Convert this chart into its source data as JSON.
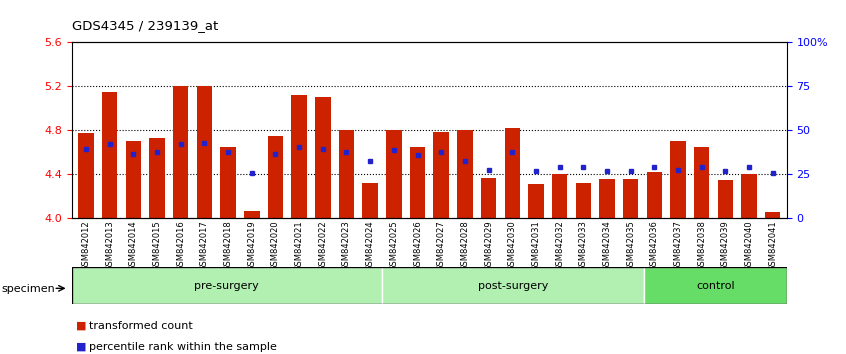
{
  "title": "GDS4345 / 239139_at",
  "samples": [
    "GSM842012",
    "GSM842013",
    "GSM842014",
    "GSM842015",
    "GSM842016",
    "GSM842017",
    "GSM842018",
    "GSM842019",
    "GSM842020",
    "GSM842021",
    "GSM842022",
    "GSM842023",
    "GSM842024",
    "GSM842025",
    "GSM842026",
    "GSM842027",
    "GSM842028",
    "GSM842029",
    "GSM842030",
    "GSM842031",
    "GSM842032",
    "GSM842033",
    "GSM842034",
    "GSM842035",
    "GSM842036",
    "GSM842037",
    "GSM842038",
    "GSM842039",
    "GSM842040",
    "GSM842041"
  ],
  "red_values": [
    4.77,
    5.15,
    4.7,
    4.73,
    5.2,
    5.2,
    4.65,
    4.06,
    4.75,
    5.12,
    5.1,
    4.8,
    4.32,
    4.8,
    4.65,
    4.78,
    4.8,
    4.36,
    4.82,
    4.31,
    4.4,
    4.32,
    4.35,
    4.35,
    4.42,
    4.7,
    4.65,
    4.34,
    4.4,
    4.05
  ],
  "blue_values": [
    4.63,
    4.67,
    4.58,
    4.6,
    4.67,
    4.68,
    4.6,
    4.41,
    4.58,
    4.65,
    4.63,
    4.6,
    4.52,
    4.62,
    4.57,
    4.6,
    4.52,
    4.44,
    4.6,
    4.43,
    4.46,
    4.46,
    4.43,
    4.43,
    4.46,
    4.44,
    4.46,
    4.43,
    4.46,
    4.41
  ],
  "groups": [
    {
      "label": "pre-surgery",
      "start": 0,
      "end": 13,
      "color": "#b2f0b2"
    },
    {
      "label": "post-surgery",
      "start": 13,
      "end": 24,
      "color": "#b2f0b2"
    },
    {
      "label": "control",
      "start": 24,
      "end": 30,
      "color": "#66dd66"
    }
  ],
  "ylim": [
    4.0,
    5.6
  ],
  "yticks_left": [
    4.0,
    4.4,
    4.8,
    5.2,
    5.6
  ],
  "yticks_right_vals": [
    0,
    25,
    50,
    75,
    100
  ],
  "yticks_right_labels": [
    "0",
    "25",
    "50",
    "75",
    "100%"
  ],
  "bar_color": "#cc2200",
  "blue_color": "#2222cc",
  "bar_bottom": 4.0,
  "xticklabel_bg": "#d8d8d8"
}
